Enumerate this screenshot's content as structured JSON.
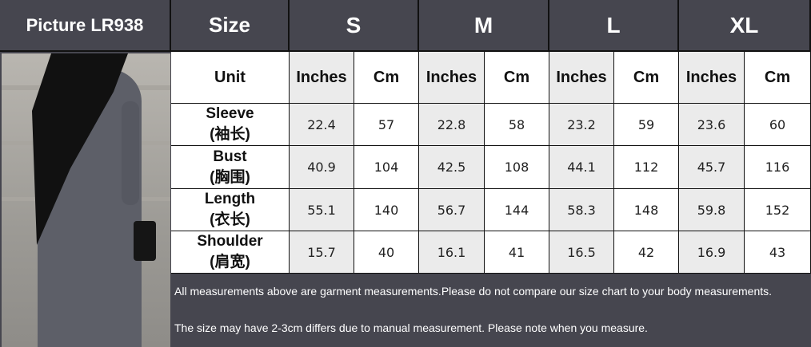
{
  "header": {
    "picture_label": "Picture LR938",
    "size_label": "Size",
    "sizes": [
      "S",
      "M",
      "L",
      "XL"
    ]
  },
  "unit_row": {
    "label": "Unit",
    "units": [
      "Inches",
      "Cm"
    ]
  },
  "rows": [
    {
      "name": "Sleeve",
      "name_cn": "(袖长)",
      "values": [
        "22.4",
        "57",
        "22.8",
        "58",
        "23.2",
        "59",
        "23.6",
        "60"
      ]
    },
    {
      "name": "Bust",
      "name_cn": "(胸围)",
      "values": [
        "40.9",
        "104",
        "42.5",
        "108",
        "44.1",
        "112",
        "45.7",
        "116"
      ]
    },
    {
      "name": "Length",
      "name_cn": "(衣长)",
      "values": [
        "55.1",
        "140",
        "56.7",
        "144",
        "58.3",
        "148",
        "59.8",
        "152"
      ]
    },
    {
      "name": "Shoulder",
      "name_cn": "(肩宽)",
      "values": [
        "15.7",
        "40",
        "16.1",
        "41",
        "16.5",
        "42",
        "16.9",
        "43"
      ]
    }
  ],
  "footer": {
    "note1": "All measurements above are garment measurements.Please do not compare our size chart to your body measurements.",
    "note2": "The size may have 2-3cm differs due to manual measurement. Please note when you measure."
  },
  "colors": {
    "header_bg": "#46464f",
    "inches_bg": "#ebebeb",
    "text_dark": "#111111"
  }
}
